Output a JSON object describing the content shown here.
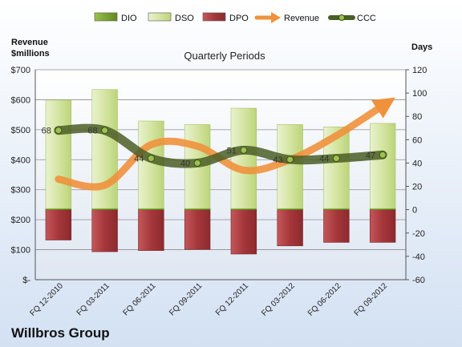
{
  "chart_data": {
    "type": "bar",
    "title": "Quarterly Periods",
    "company": "Willbros Group",
    "left_axis_label": [
      "Revenue",
      "$millions"
    ],
    "right_axis_label": "Days",
    "categories": [
      "FQ 12-2010",
      "FQ 03-2011",
      "FQ 06-2011",
      "FQ 09-2011",
      "FQ 12-2011",
      "FQ 03-2012",
      "FQ 06-2012",
      "FQ 09-2012"
    ],
    "y_left": {
      "min": 0,
      "max": 700,
      "step": 100,
      "ticks": [
        "$-",
        "$100",
        "$200",
        "$300",
        "$400",
        "$500",
        "$600",
        "$700"
      ]
    },
    "y_right": {
      "min": -60,
      "max": 120,
      "step": 20,
      "ticks": [
        "-60",
        "-40",
        "-20",
        "0",
        "20",
        "40",
        "60",
        "80",
        "100",
        "120"
      ]
    },
    "series": [
      {
        "name": "DIO",
        "axis": "right",
        "color": "#6f9a2a",
        "values": [
          1,
          1,
          1,
          1,
          1,
          1,
          1,
          1
        ]
      },
      {
        "name": "DSO",
        "axis": "right",
        "color": "#d7e6a8",
        "values": [
          93,
          102,
          75,
          72,
          86,
          72,
          70,
          73
        ]
      },
      {
        "name": "DPO",
        "axis": "right",
        "color": "#a8373b",
        "values": [
          -26,
          -36,
          -35,
          -34,
          -38,
          -31,
          -28,
          -28
        ]
      },
      {
        "name": "Revenue",
        "axis": "left",
        "color": "#f0913c",
        "values": [
          335,
          315,
          450,
          445,
          365,
          400,
          480,
          580
        ]
      },
      {
        "name": "CCC",
        "axis": "right",
        "color": "#556b2f",
        "values": [
          68,
          68,
          44,
          40,
          51,
          43,
          44,
          47
        ],
        "labels": [
          "68",
          "68",
          "44",
          "40",
          "51",
          "43",
          "44",
          "47"
        ]
      }
    ],
    "legend": {
      "position": "top"
    },
    "grid": true
  }
}
